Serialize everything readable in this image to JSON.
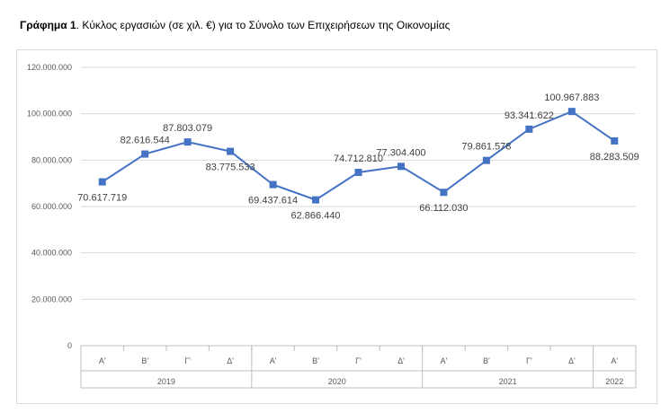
{
  "caption": {
    "label": "Γράφημα 1",
    "text": ". Κύκλος εργασιών (σε χιλ. €) για το Σύνολο των Επιχειρήσεων της Οικονομίας"
  },
  "chart_data": {
    "type": "line",
    "title": "",
    "xlabel": "",
    "ylabel": "",
    "ylim": [
      0,
      120000000
    ],
    "y_ticks": [
      "0",
      "20.000.000",
      "40.000.000",
      "60.000.000",
      "80.000.000",
      "100.000.000",
      "120.000.000"
    ],
    "categories": [
      "Α'",
      "Β'",
      "Γ'",
      "Δ'",
      "Α'",
      "Β'",
      "Γ'",
      "Δ'",
      "Α'",
      "Β'",
      "Γ'",
      "Δ'",
      "Α'"
    ],
    "groups": [
      {
        "label": "2019",
        "count": 4
      },
      {
        "label": "2020",
        "count": 4
      },
      {
        "label": "2021",
        "count": 4
      },
      {
        "label": "2022",
        "count": 1
      }
    ],
    "series": [
      {
        "values": [
          70617719,
          82616544,
          87803079,
          83775533,
          69437614,
          62866440,
          74712810,
          77304400,
          66112030,
          79861578,
          93341622,
          100967883,
          88283509
        ],
        "labels": [
          "70.617.719",
          "82.616.544",
          "87.803.079",
          "83.775.533",
          "69.437.614",
          "62.866.440",
          "74.712.810",
          "77.304.400",
          "66.112.030",
          "79.861.578",
          "93.341.622",
          "100.967.883",
          "88.283.509"
        ]
      }
    ],
    "grid": true,
    "legend": "none",
    "line_color": "#4472c4"
  }
}
